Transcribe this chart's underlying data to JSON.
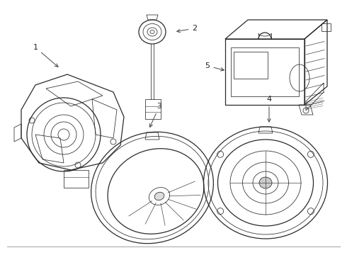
{
  "background_color": "#ffffff",
  "line_color": "#2a2a2a",
  "label_color": "#222222",
  "arrow_color": "#444444",
  "fig_width": 4.9,
  "fig_height": 3.6,
  "dpi": 100
}
